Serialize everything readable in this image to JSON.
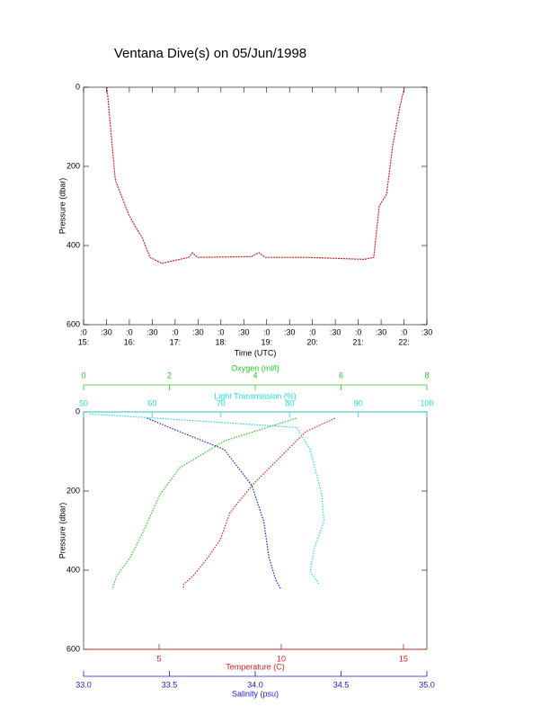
{
  "chart_data": [
    {
      "type": "line",
      "title": "Ventana Dive(s) on 05/Jun/1998",
      "x_label": "Time (UTC)",
      "y_label": "Pressure (dbar)",
      "x": [
        15.51,
        15.69,
        15.71,
        15.98,
        16.12,
        16.28,
        16.45,
        16.71,
        16.9,
        17.3,
        17.38,
        17.49,
        18.67,
        18.83,
        18.97,
        19.85,
        20.64,
        21.13,
        21.34,
        21.46,
        21.62,
        21.75,
        21.91,
        22.01
      ],
      "values": [
        0,
        230,
        240,
        320,
        350,
        380,
        430,
        445,
        440,
        430,
        418,
        430,
        428,
        418,
        430,
        430,
        433,
        435,
        430,
        300,
        270,
        150,
        50,
        0
      ],
      "color": "#d62020",
      "xlim": [
        15,
        22.5
      ],
      "xticks": [
        {
          "value": 15,
          "label": ":0"
        },
        {
          "value": 15.5,
          "label": ":30"
        },
        {
          "value": 16,
          "label": ":0"
        },
        {
          "value": 16.5,
          "label": ":30"
        },
        {
          "value": 17,
          "label": ":0"
        },
        {
          "value": 17.5,
          "label": ":30"
        },
        {
          "value": 18,
          "label": ":0"
        },
        {
          "value": 18.5,
          "label": ":30"
        },
        {
          "value": 19,
          "label": ":0"
        },
        {
          "value": 19.5,
          "label": ":30"
        },
        {
          "value": 20,
          "label": ":0"
        },
        {
          "value": 20.5,
          "label": ":30"
        },
        {
          "value": 21,
          "label": ":0"
        },
        {
          "value": 21.5,
          "label": ":30"
        },
        {
          "value": 22,
          "label": ":0"
        },
        {
          "value": 22.5,
          "label": ":30"
        }
      ],
      "hour_labels": [
        {
          "value": 15,
          "label": "15:"
        },
        {
          "value": 16,
          "label": "16:"
        },
        {
          "value": 17,
          "label": "17:"
        },
        {
          "value": 18,
          "label": "18:"
        },
        {
          "value": 19,
          "label": "19:"
        },
        {
          "value": 20,
          "label": "20:"
        },
        {
          "value": 21,
          "label": "21:"
        },
        {
          "value": 22,
          "label": "22:"
        }
      ],
      "ylim": [
        0,
        600
      ],
      "yticks": [
        0,
        200,
        400,
        600
      ],
      "y_inverted": true
    },
    {
      "type": "profile",
      "y_label": "Pressure (dbar)",
      "ylim": [
        0,
        600
      ],
      "yticks": [
        0,
        200,
        400,
        600
      ],
      "y_inverted": true,
      "x_axes": [
        {
          "label": "Temperature (C)",
          "color": "#d62020",
          "position": "bottom",
          "xlim": [
            1.91,
            15.96
          ],
          "xticks": [
            5,
            10,
            15
          ]
        },
        {
          "label": "Salinity (psu)",
          "color": "#1a1acc",
          "position": "bottom",
          "xlim": [
            33,
            35
          ],
          "xticks": [
            {
              "value": 33,
              "label": "33.0"
            },
            {
              "value": 33.5,
              "label": "33.5"
            },
            {
              "value": 34,
              "label": "34.0"
            },
            {
              "value": 34.5,
              "label": "34.5"
            },
            {
              "value": 35,
              "label": "35.0"
            }
          ]
        },
        {
          "label": "Oxygen (ml/l)",
          "color": "#22cc22",
          "position": "top",
          "xlim": [
            0,
            8
          ],
          "xticks": [
            0,
            2,
            4,
            6,
            8
          ]
        },
        {
          "label": "Light Transmission (%)",
          "color": "#22dddd",
          "position": "top",
          "xlim": [
            50,
            100
          ],
          "xticks": [
            50,
            60,
            70,
            80,
            90,
            100
          ]
        }
      ],
      "series": [
        {
          "x_axis": 0,
          "color": "#d62020",
          "x": [
            12.2,
            11.0,
            9.9,
            8.8,
            7.9,
            7.5,
            7.0,
            6.4,
            6.0,
            6.0
          ],
          "values": [
            16,
            50,
            118,
            186,
            255,
            323,
            368,
            414,
            436,
            448
          ]
        },
        {
          "x_axis": 1,
          "color": "#1a1acc",
          "x": [
            33.37,
            33.56,
            33.82,
            33.98,
            34.05,
            34.08,
            34.12,
            34.15
          ],
          "values": [
            16,
            50,
            95,
            186,
            277,
            368,
            425,
            448
          ]
        },
        {
          "x_axis": 2,
          "color": "#22cc22",
          "x": [
            4.96,
            3.29,
            2.24,
            1.78,
            1.4,
            1.09,
            0.77,
            0.67
          ],
          "values": [
            16,
            73,
            141,
            209,
            300,
            368,
            414,
            448
          ]
        },
        {
          "x_axis": 3,
          "color": "#22dddd",
          "x": [
            50.9,
            81.0,
            83.0,
            84.7,
            85.0,
            83.6,
            83.0,
            84.3
          ],
          "values": [
            5,
            39,
            95,
            209,
            277,
            345,
            402,
            436
          ]
        }
      ]
    }
  ]
}
